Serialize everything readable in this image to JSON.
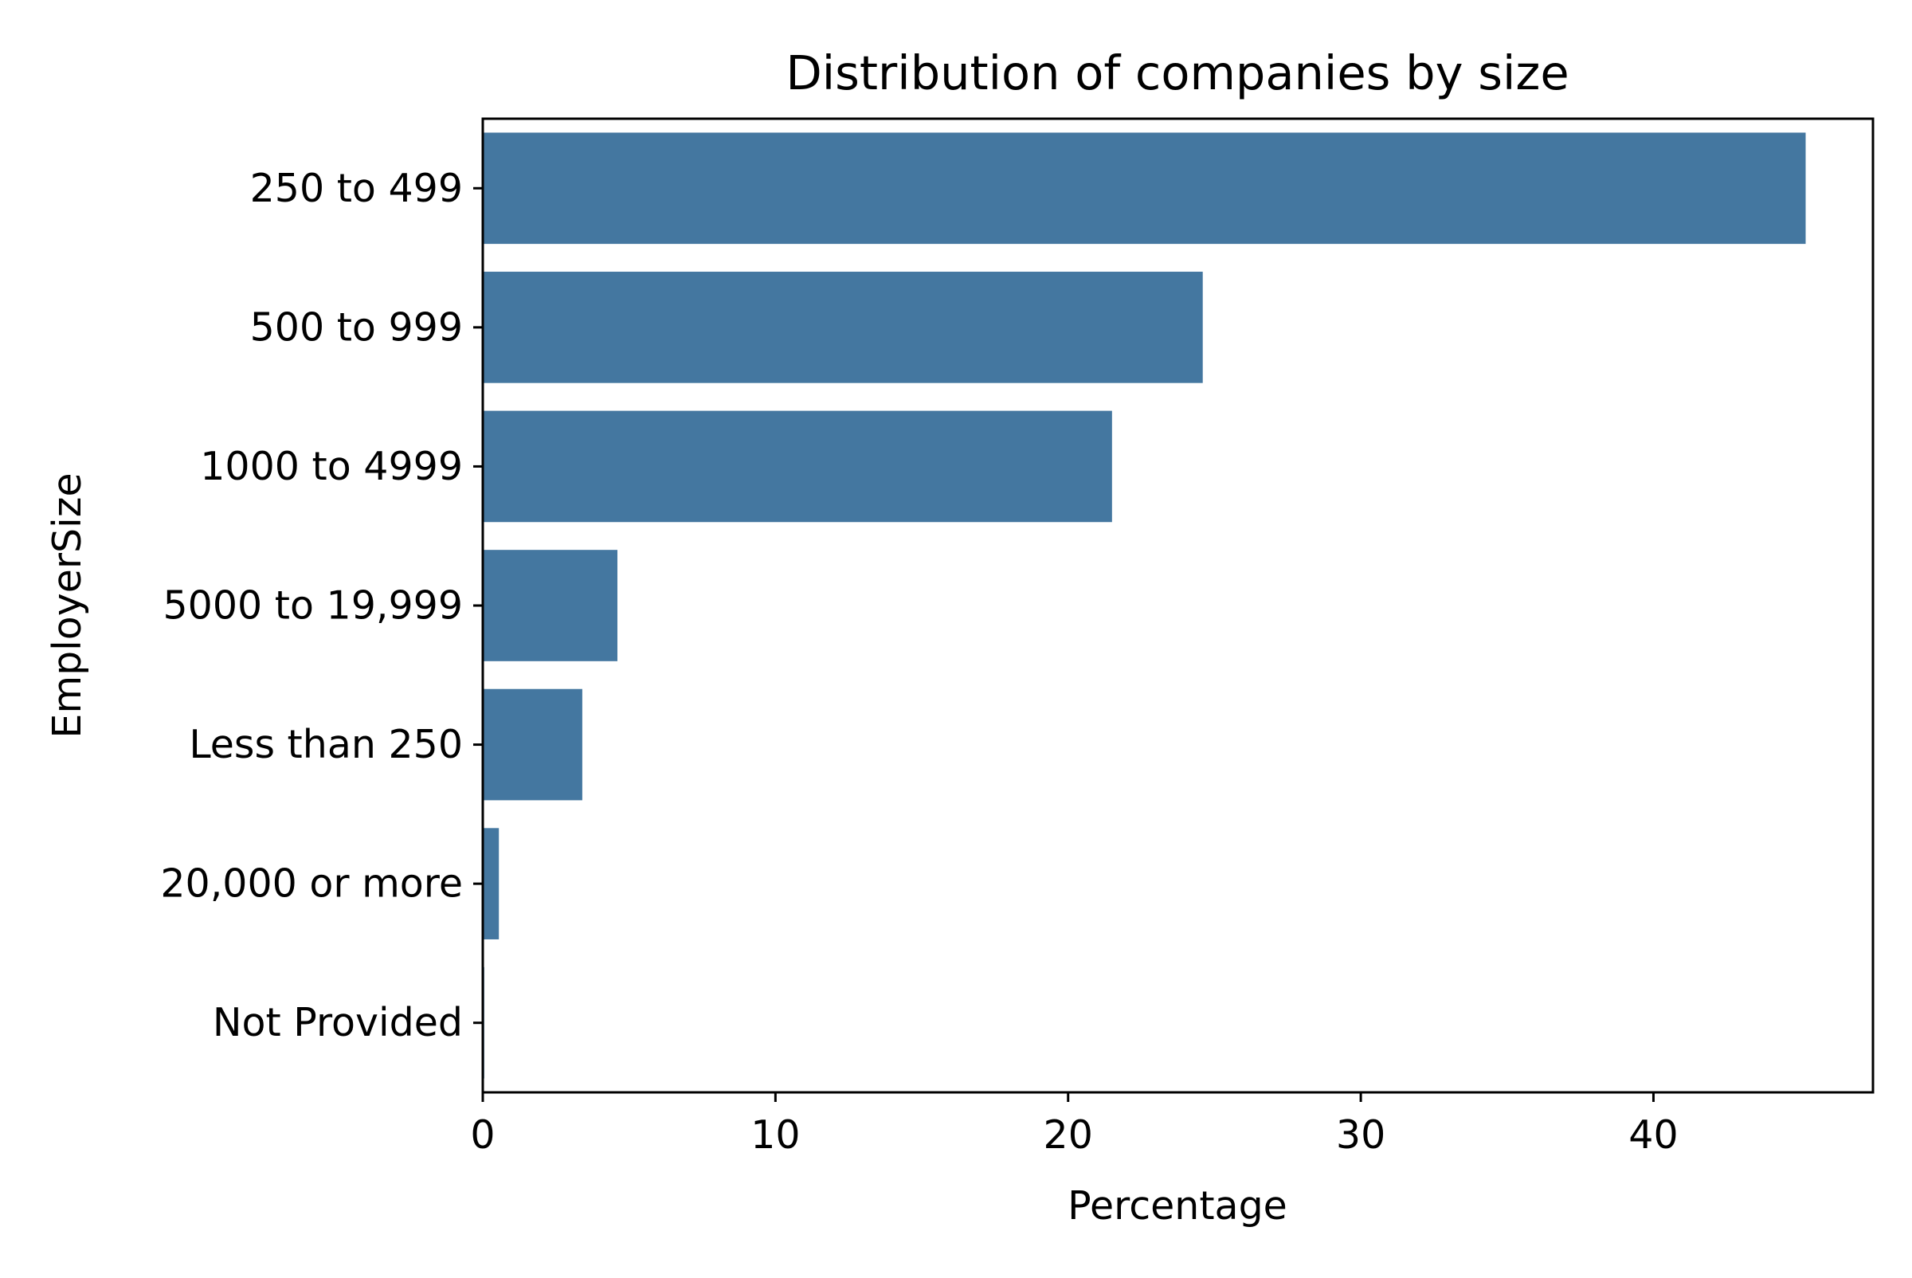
{
  "chart_data": {
    "type": "bar",
    "orientation": "horizontal",
    "title": "Distribution of companies by size",
    "xlabel": "Percentage",
    "ylabel": "EmployerSize",
    "categories": [
      "250 to 499",
      "500 to 999",
      "1000 to 4999",
      "5000 to 19,999",
      "Less than 250",
      "20,000 or more",
      "Not Provided"
    ],
    "values": [
      45.2,
      24.6,
      21.5,
      4.6,
      3.4,
      0.55,
      0.05
    ],
    "xlim": [
      0,
      47.5
    ],
    "xticks": [
      0,
      10,
      20,
      30,
      40
    ],
    "grid": false,
    "bar_color": "#4477a0"
  }
}
